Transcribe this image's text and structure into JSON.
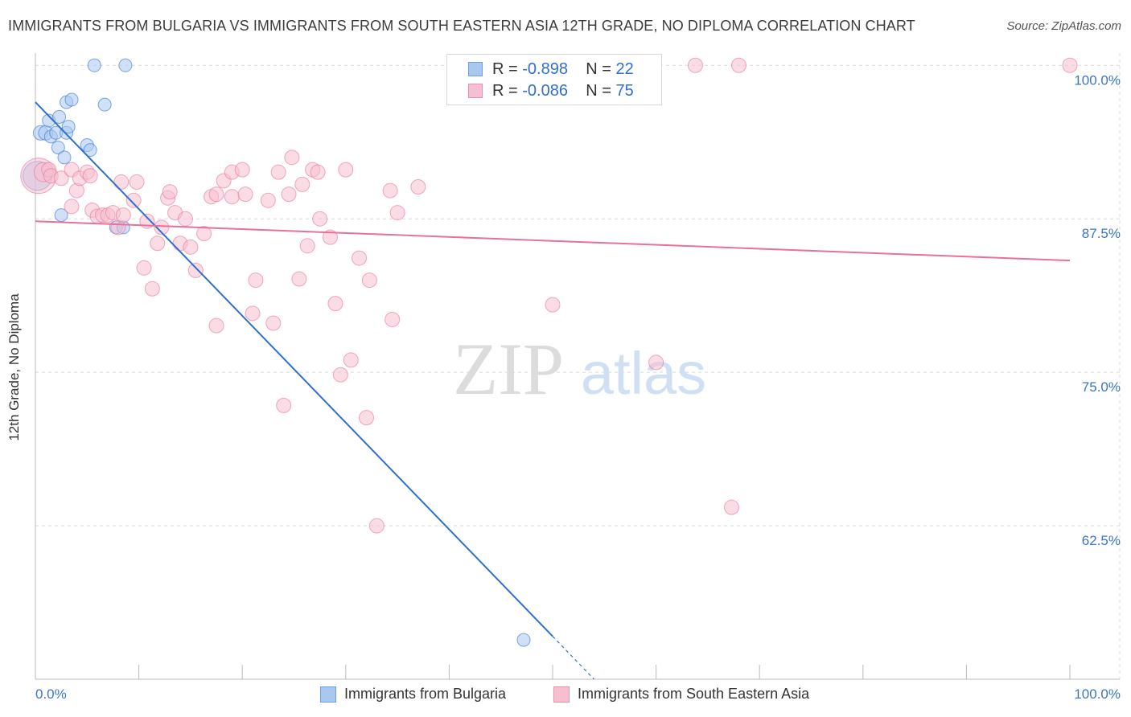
{
  "title": "IMMIGRANTS FROM BULGARIA VS IMMIGRANTS FROM SOUTH EASTERN ASIA 12TH GRADE, NO DIPLOMA CORRELATION CHART",
  "source": "Source: ZipAtlas.com",
  "watermark": {
    "zip": "ZIP",
    "atlas": "atlas"
  },
  "colors": {
    "blue": "#2f6fd0",
    "blue_fill": "#a9c8f0",
    "pink": "#e8709a",
    "pink_fill": "#f6bfd0",
    "grid": "#d9d9d9",
    "tick_label": "#3b74c9"
  },
  "legend": {
    "r_label": "R =",
    "n_label": "N =",
    "series": [
      {
        "r": "-0.898",
        "n": "22"
      },
      {
        "r": "-0.086",
        "n": "75"
      }
    ]
  },
  "chart_data": {
    "type": "scatter",
    "xlabel": "",
    "ylabel": "12th Grade, No Diploma",
    "xlim": [
      0,
      100
    ],
    "ylim": [
      50,
      101
    ],
    "x_tick_labels": [
      {
        "value": 0,
        "label": "0.0%"
      },
      {
        "value": 100,
        "label": "100.0%"
      }
    ],
    "y_tick_labels": [
      {
        "value": 100,
        "label": "100.0%"
      },
      {
        "value": 87.5,
        "label": "87.5%"
      },
      {
        "value": 75,
        "label": "75.0%"
      },
      {
        "value": 62.5,
        "label": "62.5%"
      }
    ],
    "grid": true,
    "series": [
      {
        "name": "Immigrants from Bulgaria",
        "color": "#2f6fd0",
        "fill": "#a9c8f0",
        "trend": {
          "x0": 0,
          "y0": 97.0,
          "x1": 50,
          "y1": 53.5,
          "dash_to_x": 54,
          "dash_to_y": 50
        },
        "points": [
          [
            0.2,
            91.0,
            18
          ],
          [
            0.5,
            94.5,
            9
          ],
          [
            1.0,
            94.5,
            9
          ],
          [
            1.3,
            95.5,
            8
          ],
          [
            1.5,
            94.2,
            8
          ],
          [
            2.0,
            94.5,
            8
          ],
          [
            2.2,
            93.3,
            8
          ],
          [
            2.3,
            95.8,
            8
          ],
          [
            2.5,
            87.8,
            8
          ],
          [
            2.8,
            92.5,
            8
          ],
          [
            3.0,
            94.5,
            8
          ],
          [
            3.0,
            97.0,
            8
          ],
          [
            3.2,
            95.0,
            8
          ],
          [
            3.5,
            97.2,
            8
          ],
          [
            5.0,
            93.5,
            8
          ],
          [
            5.3,
            93.1,
            8
          ],
          [
            5.7,
            100.0,
            8
          ],
          [
            6.7,
            96.8,
            8
          ],
          [
            7.8,
            86.8,
            8
          ],
          [
            8.5,
            86.8,
            8
          ],
          [
            8.7,
            100.0,
            8
          ],
          [
            47.2,
            53.2,
            8
          ]
        ]
      },
      {
        "name": "Immigrants from South Eastern Asia",
        "color": "#e8709a",
        "fill": "#f6bfd0",
        "trend": {
          "x0": 0,
          "y0": 87.3,
          "x1": 100,
          "y1": 84.1
        },
        "points": [
          [
            0.3,
            91.0,
            22
          ],
          [
            0.8,
            91.3,
            12
          ],
          [
            1.3,
            91.5,
            9
          ],
          [
            1.5,
            91.0,
            9
          ],
          [
            2.5,
            90.8,
            9
          ],
          [
            3.5,
            91.5,
            9
          ],
          [
            3.5,
            88.5,
            9
          ],
          [
            4.0,
            89.8,
            9
          ],
          [
            4.3,
            90.8,
            9
          ],
          [
            5.0,
            91.3,
            9
          ],
          [
            5.3,
            91.0,
            9
          ],
          [
            5.5,
            88.2,
            9
          ],
          [
            6.0,
            87.7,
            9
          ],
          [
            6.5,
            87.8,
            9
          ],
          [
            7.0,
            87.8,
            9
          ],
          [
            7.5,
            88.0,
            9
          ],
          [
            8.0,
            86.8,
            9
          ],
          [
            8.3,
            90.5,
            9
          ],
          [
            8.5,
            87.8,
            9
          ],
          [
            9.5,
            89.0,
            9
          ],
          [
            9.8,
            90.5,
            9
          ],
          [
            10.5,
            83.5,
            9
          ],
          [
            10.8,
            87.3,
            9
          ],
          [
            11.3,
            81.8,
            9
          ],
          [
            11.8,
            85.5,
            9
          ],
          [
            12.2,
            86.8,
            9
          ],
          [
            12.8,
            89.2,
            9
          ],
          [
            13.0,
            89.7,
            9
          ],
          [
            13.5,
            88.0,
            9
          ],
          [
            14.0,
            85.5,
            9
          ],
          [
            14.5,
            87.5,
            9
          ],
          [
            15.0,
            85.2,
            9
          ],
          [
            15.5,
            83.3,
            9
          ],
          [
            16.3,
            86.3,
            9
          ],
          [
            17.0,
            89.3,
            9
          ],
          [
            17.5,
            89.5,
            9
          ],
          [
            17.5,
            78.8,
            9
          ],
          [
            18.2,
            90.6,
            9
          ],
          [
            19.0,
            89.3,
            9
          ],
          [
            19.0,
            91.3,
            9
          ],
          [
            20.0,
            91.5,
            9
          ],
          [
            20.3,
            89.5,
            9
          ],
          [
            21.0,
            79.8,
            9
          ],
          [
            21.3,
            82.5,
            9
          ],
          [
            22.5,
            89.0,
            9
          ],
          [
            23.0,
            79.0,
            9
          ],
          [
            23.5,
            91.3,
            9
          ],
          [
            24.0,
            72.3,
            9
          ],
          [
            24.5,
            89.5,
            9
          ],
          [
            24.8,
            92.5,
            9
          ],
          [
            25.5,
            82.6,
            9
          ],
          [
            25.8,
            90.3,
            9
          ],
          [
            26.3,
            85.3,
            9
          ],
          [
            26.8,
            91.5,
            9
          ],
          [
            27.3,
            91.3,
            9
          ],
          [
            27.5,
            87.5,
            9
          ],
          [
            28.5,
            86.0,
            9
          ],
          [
            29.0,
            80.6,
            9
          ],
          [
            29.5,
            74.8,
            9
          ],
          [
            30.0,
            91.5,
            9
          ],
          [
            30.5,
            76.0,
            9
          ],
          [
            31.3,
            84.3,
            9
          ],
          [
            32.0,
            71.3,
            9
          ],
          [
            32.3,
            82.5,
            9
          ],
          [
            33.0,
            62.5,
            9
          ],
          [
            34.3,
            89.8,
            9
          ],
          [
            34.5,
            79.3,
            9
          ],
          [
            35.0,
            88.0,
            9
          ],
          [
            37.0,
            90.1,
            9
          ],
          [
            50.0,
            80.5,
            9
          ],
          [
            60.0,
            75.8,
            9
          ],
          [
            63.8,
            100.0,
            9
          ],
          [
            68.0,
            100.0,
            9
          ],
          [
            67.3,
            64.0,
            9
          ],
          [
            100.0,
            100.0,
            9
          ]
        ]
      }
    ]
  }
}
